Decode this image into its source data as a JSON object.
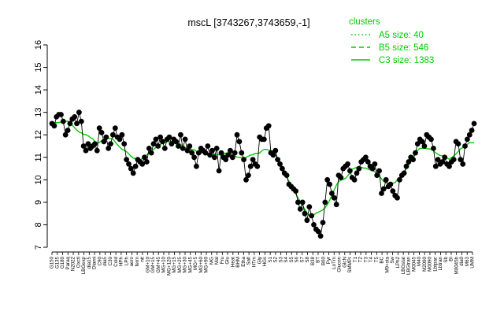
{
  "chart_data": {
    "type": "line",
    "title": "mscL [3743267,3743659,-1]",
    "xlabel": "",
    "ylabel": "",
    "ylim": [
      7,
      16
    ],
    "yticks": [
      7,
      8,
      9,
      10,
      11,
      12,
      13,
      14,
      15,
      16
    ],
    "grid": false,
    "legend": {
      "title": "clusters",
      "position": "top-right",
      "entries": [
        {
          "label": "A5 size: 40",
          "style": "dotted"
        },
        {
          "label": "B5 size: 546",
          "style": "dashed"
        },
        {
          "label": "C3 size: 1383",
          "style": "solid"
        }
      ]
    },
    "colors": {
      "points": "#000000",
      "line": "#000000",
      "cluster": "#00cc00"
    },
    "x_tick_labels": [
      "G150",
      "G135",
      "G180",
      "Paraq",
      "N2022",
      "Oxctl",
      "LBGexp",
      "dia15",
      "Diami",
      "C90",
      "dia5",
      "C30",
      "Cold",
      "HPh",
      "LPh",
      "aero",
      "ferm",
      "nit",
      "GM+10",
      "GM+15",
      "GM+45",
      "MG+10",
      "MG+120",
      "MG+15",
      "MG+25",
      "MG+30",
      "MG+45",
      "MG+5",
      "MG+60",
      "MG+90",
      "MG",
      "Mal",
      "Fru",
      "Glu",
      "Heat",
      "BHM",
      "Etha",
      "Salt",
      "HTm",
      "Gly",
      "HGs",
      "S1",
      "S2",
      "S3",
      "S4",
      "S5",
      "S6",
      "S7",
      "S8",
      "B38",
      "BT",
      "B60",
      "Pyr",
      "LoTm",
      "Glucon",
      "GlcN",
      "SMMPr",
      "T1",
      "T2",
      "T3",
      "T4",
      "T5",
      "BC",
      "M9+sta",
      "Sw",
      "LPh2",
      "LBGstat",
      "LBGtran",
      "M0045",
      "M40",
      "M2090",
      "M0090",
      "Lbtpac",
      "Lbtran",
      "Sb",
      "BI",
      "M0045b",
      "dia0",
      "M63",
      "UMM"
    ],
    "x_tick_labels_note": "tick labels at the bottom are partly illegible; reproduced approximately",
    "points": [
      12.5,
      12.4,
      12.8,
      12.9,
      12.9,
      12.6,
      12.0,
      12.2,
      12.5,
      12.7,
      12.8,
      12.5,
      13.0,
      12.6,
      11.5,
      11.3,
      11.6,
      11.4,
      11.5,
      11.6,
      11.3,
      12.3,
      12.1,
      11.7,
      11.9,
      11.4,
      11.6,
      12.0,
      12.3,
      11.9,
      11.8,
      12.0,
      11.6,
      10.9,
      10.7,
      10.5,
      10.3,
      10.6,
      10.9,
      10.8,
      10.7,
      11.0,
      10.8,
      11.4,
      11.2,
      11.6,
      11.8,
      11.5,
      11.9,
      11.7,
      11.4,
      11.8,
      11.9,
      11.6,
      11.8,
      11.7,
      11.5,
      12.0,
      11.4,
      11.8,
      11.3,
      11.5,
      11.2,
      11.0,
      10.6,
      11.2,
      11.4,
      11.3,
      11.2,
      11.5,
      11.1,
      11.3,
      11.0,
      11.4,
      10.4,
      11.2,
      11.0,
      10.9,
      11.1,
      11.3,
      11.0,
      11.2,
      12.0,
      11.7,
      11.2,
      10.9,
      10.0,
      10.2,
      10.6,
      10.9,
      10.7,
      10.6,
      11.9,
      11.8,
      11.8,
      12.3,
      12.4,
      11.2,
      11.1,
      11.3,
      10.9,
      10.7,
      10.5,
      10.3,
      10.2,
      9.8,
      9.7,
      9.6,
      9.5,
      9.0,
      8.7,
      9.0,
      8.5,
      8.2,
      8.8,
      8.4,
      8.0,
      7.8,
      7.7,
      7.5,
      8.1,
      9.0,
      10.0,
      9.8,
      9.4,
      9.2,
      8.9,
      10.2,
      10.1,
      10.5,
      10.6,
      10.7,
      10.4,
      10.1,
      10.0,
      10.3,
      10.5,
      10.8,
      10.9,
      11.0,
      10.8,
      10.6,
      10.5,
      10.7,
      10.2,
      10.4,
      9.4,
      9.6,
      10.0,
      9.7,
      9.8,
      9.5,
      9.3,
      9.2,
      10.0,
      10.2,
      10.3,
      10.6,
      10.8,
      11.0,
      10.9,
      11.2,
      11.6,
      11.8,
      11.7,
      11.5,
      12.0,
      11.9,
      11.8,
      11.4,
      10.6,
      10.9,
      10.7,
      10.8,
      11.0,
      10.7,
      10.6,
      10.8,
      10.9,
      11.7,
      11.6,
      10.9,
      10.7,
      11.5,
      11.8,
      12.0,
      12.2,
      12.5
    ]
  }
}
